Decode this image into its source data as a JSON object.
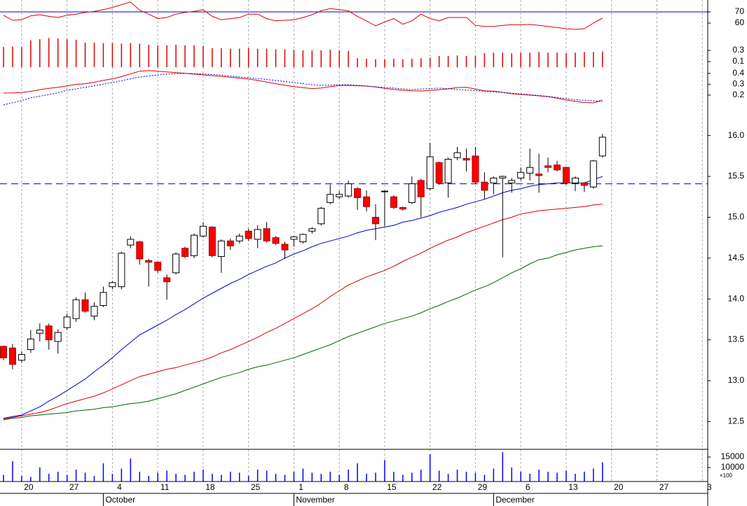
{
  "chart_data": [
    {
      "type": "candlestick",
      "xlim": [
        -0.386,
        77.6
      ],
      "xticks": [
        {
          "value": 2,
          "label": "20"
        },
        {
          "value": 7,
          "label": "27"
        },
        {
          "value": 12,
          "label": "4"
        },
        {
          "value": 17,
          "label": "11"
        },
        {
          "value": 22,
          "label": "18"
        },
        {
          "value": 27,
          "label": "25"
        },
        {
          "value": 32,
          "label": "1"
        },
        {
          "value": 37,
          "label": "8"
        },
        {
          "value": 42,
          "label": "15"
        },
        {
          "value": 47,
          "label": "22"
        },
        {
          "value": 52,
          "label": "29"
        },
        {
          "value": 57,
          "label": "6"
        },
        {
          "value": 62,
          "label": "13"
        },
        {
          "value": 67,
          "label": "20"
        },
        {
          "value": 72,
          "label": "27"
        },
        {
          "value": 77,
          "label": "3"
        }
      ],
      "month_ticks": [
        {
          "value": 11,
          "label": "October"
        },
        {
          "value": 32,
          "label": "November"
        },
        {
          "value": 54,
          "label": "December"
        }
      ],
      "grid": true,
      "ylim": [
        12.16,
        16.22
      ],
      "yticks": [
        12.5,
        {
          "value": 13,
          "label": "13.0"
        },
        13.5,
        {
          "value": 14,
          "label": "14.0"
        },
        14.5,
        {
          "value": 15,
          "label": "15.0"
        },
        15.5,
        {
          "value": 16,
          "label": "16.0"
        }
      ],
      "hline": 15.41,
      "hline_color": "#0000cc",
      "up_color": "#ffffff",
      "down_color": "#ff0000",
      "open": [
        13.42,
        13.4,
        13.25,
        13.38,
        13.58,
        13.67,
        13.48,
        13.65,
        13.76,
        13.99,
        13.79,
        13.92,
        14.15,
        14.15,
        14.66,
        14.7,
        14.47,
        14.45,
        14.26,
        14.32,
        14.62,
        14.53,
        14.77,
        14.88,
        14.52,
        14.71,
        14.71,
        14.83,
        14.73,
        14.86,
        14.75,
        14.67,
        14.73,
        14.7,
        14.83,
        14.92,
        15.18,
        15.25,
        15.26,
        15.35,
        15.25,
        15.0,
        15.32,
        15.25,
        15.12,
        15.18,
        15.45,
        15.35,
        15.67,
        15.42,
        15.73,
        15.72,
        15.75,
        15.43,
        15.42,
        15.48,
        15.42,
        15.48,
        15.54,
        15.53,
        15.63,
        15.64,
        15.61,
        15.42,
        15.42,
        15.37,
        15.75
      ],
      "high": [
        13.43,
        13.45,
        13.36,
        13.62,
        13.7,
        13.7,
        13.63,
        13.82,
        14.02,
        14.08,
        13.96,
        14.15,
        14.22,
        14.58,
        14.77,
        14.71,
        14.49,
        14.46,
        14.3,
        14.57,
        14.64,
        14.8,
        14.94,
        14.89,
        14.73,
        14.74,
        14.8,
        14.86,
        14.9,
        14.94,
        14.77,
        14.7,
        14.77,
        14.8,
        14.88,
        15.13,
        15.4,
        15.32,
        15.45,
        15.37,
        15.33,
        15.16,
        15.33,
        15.27,
        15.13,
        15.5,
        15.47,
        15.91,
        15.68,
        15.73,
        15.86,
        15.84,
        15.86,
        15.55,
        15.5,
        15.51,
        15.48,
        15.61,
        15.84,
        15.78,
        15.73,
        15.69,
        15.62,
        15.5,
        15.43,
        15.7,
        16.02
      ],
      "low": [
        13.25,
        13.14,
        13.22,
        13.34,
        13.48,
        13.38,
        13.33,
        13.62,
        13.72,
        13.83,
        13.74,
        13.9,
        14.12,
        14.12,
        14.62,
        14.42,
        14.15,
        14.32,
        13.99,
        14.3,
        14.5,
        14.5,
        14.75,
        14.51,
        14.32,
        14.6,
        14.68,
        14.71,
        14.62,
        14.69,
        14.66,
        14.49,
        14.64,
        14.68,
        14.8,
        14.9,
        15.16,
        15.22,
        15.24,
        15.09,
        15.07,
        14.72,
        14.89,
        15.1,
        15.08,
        15.16,
        15.0,
        15.33,
        15.4,
        15.24,
        15.7,
        15.56,
        15.41,
        15.22,
        15.28,
        14.51,
        15.3,
        15.45,
        15.45,
        15.3,
        15.55,
        15.56,
        15.4,
        15.32,
        15.31,
        15.35,
        15.73
      ],
      "close": [
        13.28,
        13.2,
        13.32,
        13.51,
        13.62,
        13.5,
        13.59,
        13.78,
        13.99,
        13.85,
        13.91,
        14.08,
        14.2,
        14.56,
        14.73,
        14.49,
        14.45,
        14.35,
        14.21,
        14.55,
        14.52,
        14.78,
        14.89,
        14.53,
        14.71,
        14.65,
        14.77,
        14.74,
        14.85,
        14.71,
        14.68,
        14.6,
        14.76,
        14.79,
        14.86,
        15.11,
        15.28,
        15.28,
        15.41,
        15.24,
        15.13,
        14.92,
        15.32,
        15.12,
        15.1,
        15.41,
        15.25,
        15.74,
        15.42,
        15.71,
        15.79,
        15.7,
        15.43,
        15.33,
        15.48,
        15.5,
        15.45,
        15.55,
        15.61,
        15.51,
        15.61,
        15.58,
        15.42,
        15.48,
        15.39,
        15.69,
        15.98
      ],
      "series": [
        {
          "color": "#0000cc",
          "values": [
            12.54,
            12.56,
            12.58,
            12.63,
            12.68,
            12.75,
            12.81,
            12.88,
            12.95,
            13.02,
            13.11,
            13.19,
            13.28,
            13.38,
            13.47,
            13.56,
            13.62,
            13.68,
            13.74,
            13.81,
            13.87,
            13.94,
            14.01,
            14.07,
            14.13,
            14.19,
            14.24,
            14.3,
            14.35,
            14.4,
            14.44,
            14.5,
            14.55,
            14.59,
            14.64,
            14.68,
            14.71,
            14.74,
            14.77,
            14.81,
            14.84,
            14.86,
            14.88,
            14.9,
            14.94,
            14.96,
            14.99,
            15.02,
            15.06,
            15.09,
            15.12,
            15.16,
            15.19,
            15.22,
            15.26,
            15.3,
            15.33,
            15.35,
            15.38,
            15.4,
            15.41,
            15.42,
            15.42,
            15.42,
            15.42,
            15.46,
            15.5
          ]
        },
        {
          "color": "#dd0000",
          "values": [
            12.53,
            12.55,
            12.57,
            12.59,
            12.61,
            12.64,
            12.68,
            12.72,
            12.75,
            12.78,
            12.81,
            12.85,
            12.9,
            12.95,
            13.0,
            13.05,
            13.08,
            13.11,
            13.14,
            13.16,
            13.19,
            13.22,
            13.25,
            13.29,
            13.34,
            13.38,
            13.43,
            13.48,
            13.53,
            13.59,
            13.64,
            13.7,
            13.76,
            13.82,
            13.88,
            13.95,
            14.03,
            14.1,
            14.17,
            14.22,
            14.27,
            14.31,
            14.35,
            14.4,
            14.46,
            14.51,
            14.56,
            14.62,
            14.67,
            14.72,
            14.76,
            14.81,
            14.85,
            14.89,
            14.93,
            14.97,
            15.0,
            15.04,
            15.06,
            15.08,
            15.09,
            15.1,
            15.11,
            15.12,
            15.13,
            15.15,
            15.16
          ]
        },
        {
          "color": "#006600",
          "values": [
            12.52,
            12.54,
            12.55,
            12.57,
            12.58,
            12.59,
            12.6,
            12.61,
            12.63,
            12.64,
            12.65,
            12.67,
            12.68,
            12.7,
            12.72,
            12.73,
            12.75,
            12.78,
            12.81,
            12.84,
            12.88,
            12.92,
            12.96,
            13.0,
            13.04,
            13.07,
            13.1,
            13.14,
            13.17,
            13.19,
            13.22,
            13.25,
            13.28,
            13.32,
            13.36,
            13.4,
            13.44,
            13.49,
            13.54,
            13.58,
            13.62,
            13.66,
            13.7,
            13.73,
            13.76,
            13.79,
            13.83,
            13.88,
            13.92,
            13.97,
            14.01,
            14.06,
            14.11,
            14.15,
            14.2,
            14.26,
            14.32,
            14.37,
            14.43,
            14.48,
            14.5,
            14.54,
            14.57,
            14.6,
            14.62,
            14.64,
            14.65
          ]
        }
      ]
    },
    {
      "type": "line",
      "ylim": [
        49.4,
        80.6
      ],
      "yticks": [
        70,
        60
      ],
      "hline": 70,
      "hline_color": "#0000cc",
      "series": [
        {
          "color": "#dd0000",
          "values": [
            67,
            62.5,
            63,
            66.5,
            67.5,
            66,
            65,
            67,
            68,
            69.5,
            70.5,
            72,
            74,
            76.5,
            78.8,
            71.5,
            68,
            64,
            65,
            68,
            69.5,
            70.5,
            71.9,
            66,
            63,
            64,
            65,
            68,
            68,
            64,
            62,
            62.5,
            63,
            65,
            67.5,
            71,
            73,
            72,
            71,
            66,
            62,
            57.5,
            61,
            64,
            59,
            62,
            68,
            64,
            62,
            65,
            65,
            65,
            58,
            57,
            57,
            58,
            58.5,
            58.5,
            58.8,
            58,
            57,
            56,
            55,
            54.4,
            55,
            60,
            64.4
          ]
        }
      ]
    },
    {
      "type": "bar",
      "ylim": [
        0,
        0.6
      ],
      "yticks": [
        0.3,
        0.1
      ],
      "color": "#dd0000",
      "values": [
        0.36,
        0.37,
        0.36,
        0.48,
        0.5,
        0.52,
        0.51,
        0.5,
        0.49,
        0.44,
        0.44,
        0.43,
        0.43,
        0.42,
        0.43,
        0.42,
        0.4,
        0.39,
        0.39,
        0.4,
        0.39,
        0.39,
        0.38,
        0.34,
        0.34,
        0.33,
        0.33,
        0.34,
        0.33,
        0.33,
        0.32,
        0.32,
        0.31,
        0.3,
        0.3,
        0.3,
        0.31,
        0.3,
        0.29,
        0.16,
        0.15,
        0.14,
        0.14,
        0.15,
        0.14,
        0.15,
        0.16,
        0.17,
        0.2,
        0.2,
        0.21,
        0.2,
        0.2,
        0.25,
        0.26,
        0.26,
        0.25,
        0.26,
        0.26,
        0.27,
        0.26,
        0.26,
        0.25,
        0.26,
        0.27,
        0.27,
        0.28
      ]
    },
    {
      "type": "line",
      "ylim": [
        0,
        0.45
      ],
      "yticks": [
        0.4,
        0.3,
        0.2
      ],
      "series": [
        {
          "color": "#dd0000",
          "values": [
            0.219,
            0.22,
            0.224,
            0.235,
            0.25,
            0.262,
            0.272,
            0.285,
            0.298,
            0.305,
            0.318,
            0.335,
            0.35,
            0.37,
            0.395,
            0.42,
            0.425,
            0.42,
            0.413,
            0.406,
            0.4,
            0.393,
            0.386,
            0.379,
            0.372,
            0.364,
            0.356,
            0.348,
            0.335,
            0.32,
            0.305,
            0.29,
            0.278,
            0.268,
            0.26,
            0.265,
            0.278,
            0.288,
            0.289,
            0.286,
            0.283,
            0.275,
            0.262,
            0.252,
            0.245,
            0.24,
            0.238,
            0.243,
            0.25,
            0.257,
            0.27,
            0.272,
            0.255,
            0.24,
            0.236,
            0.225,
            0.212,
            0.206,
            0.2,
            0.193,
            0.186,
            0.172,
            0.155,
            0.143,
            0.132,
            0.129,
            0.154
          ]
        },
        {
          "color": "#0000cc",
          "dotted": true,
          "values": [
            0.11,
            0.13,
            0.15,
            0.175,
            0.19,
            0.205,
            0.222,
            0.245,
            0.258,
            0.272,
            0.285,
            0.3,
            0.315,
            0.332,
            0.35,
            0.366,
            0.375,
            0.385,
            0.392,
            0.398,
            0.399,
            0.397,
            0.394,
            0.39,
            0.383,
            0.375,
            0.367,
            0.36,
            0.352,
            0.343,
            0.334,
            0.325,
            0.315,
            0.305,
            0.294,
            0.289,
            0.292,
            0.295,
            0.296,
            0.29,
            0.283,
            0.276,
            0.27,
            0.265,
            0.257,
            0.251,
            0.255,
            0.26,
            0.264,
            0.26,
            0.252,
            0.246,
            0.242,
            0.236,
            0.23,
            0.225,
            0.217,
            0.21,
            0.203,
            0.196,
            0.188,
            0.178,
            0.168,
            0.158,
            0.152,
            0.148,
            0.141
          ]
        }
      ]
    },
    {
      "type": "bar",
      "ylim": [
        3333,
        18667
      ],
      "yticks": [
        15000,
        10000
      ],
      "unit_label": "×100",
      "color": "#0000ff",
      "values": [
        6500,
        13000,
        6000,
        5500,
        10000,
        7000,
        8000,
        6500,
        9000,
        7500,
        6000,
        12000,
        7000,
        9500,
        14300,
        8000,
        6000,
        7500,
        8500,
        7000,
        6500,
        8000,
        9000,
        7000,
        6500,
        8000,
        7500,
        6000,
        9000,
        8500,
        7000,
        6500,
        8000,
        9500,
        7500,
        7000,
        8000,
        6500,
        9000,
        12000,
        7000,
        7500,
        13500,
        8000,
        6500,
        7500,
        9000,
        16300,
        8500,
        7000,
        9000,
        8000,
        7500,
        6500,
        9500,
        17300,
        10000,
        8000,
        7000,
        9000,
        8000,
        7500,
        8500,
        7000,
        8000,
        9500,
        12500
      ]
    }
  ]
}
